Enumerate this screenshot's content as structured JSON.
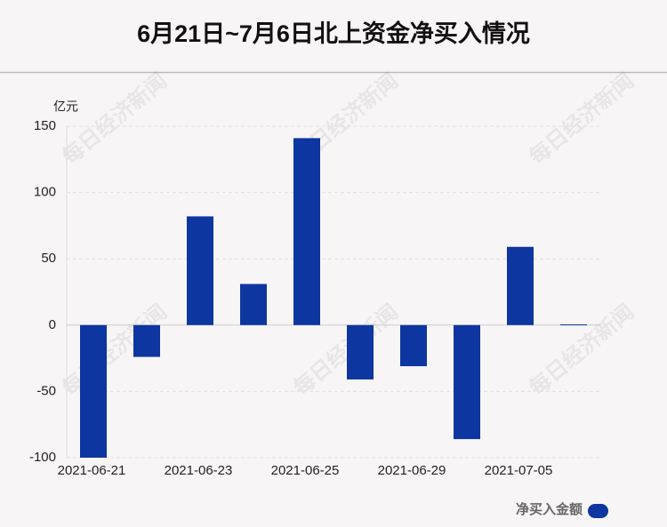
{
  "chart_data": {
    "type": "bar",
    "title": "6月21日~7月6日北上资金净买入情况",
    "y_unit": "亿元",
    "watermark": "每日经济新闻",
    "categories": [
      "2021-06-21",
      null,
      "2021-06-23",
      null,
      "2021-06-25",
      null,
      "2021-06-29",
      null,
      "2021-07-05",
      null
    ],
    "series": [
      {
        "name": "净买入金额",
        "color": "#0d36a0",
        "values": [
          -100,
          -24,
          82,
          31,
          141,
          -41,
          -31,
          -86,
          59,
          0.5
        ]
      }
    ],
    "ylim": [
      -100,
      150
    ],
    "yticks": [
      -100,
      -50,
      0,
      50,
      100,
      150
    ],
    "grid": true,
    "legend": "bottom-right"
  }
}
